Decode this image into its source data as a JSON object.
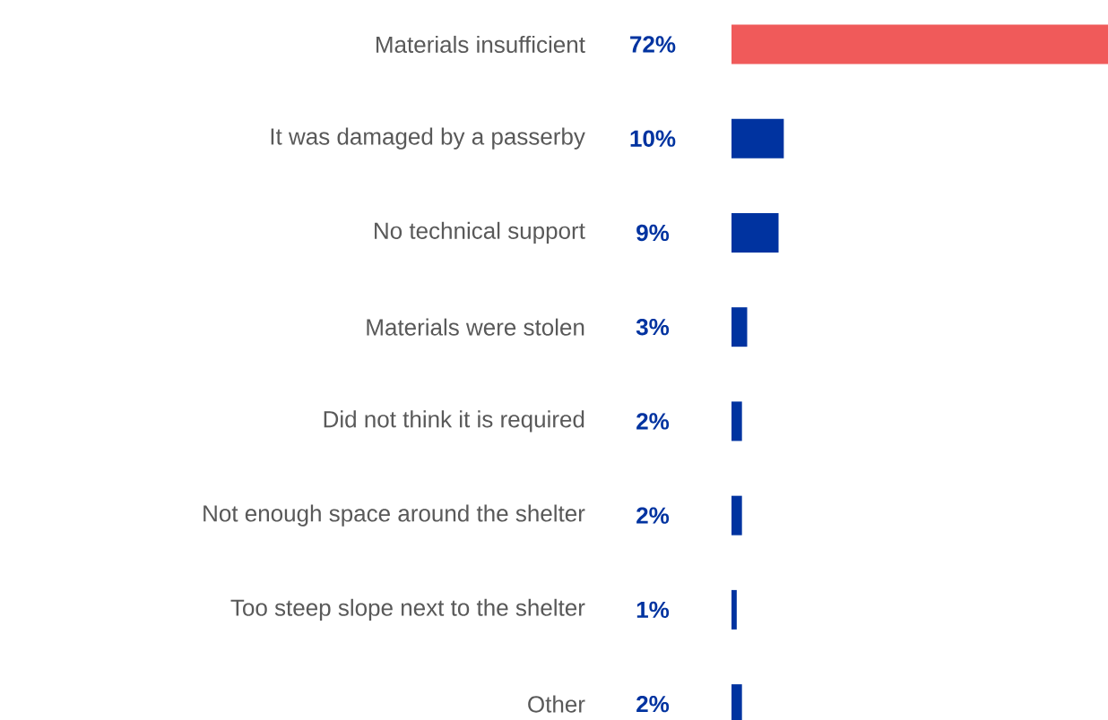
{
  "chart_data": {
    "type": "bar",
    "orientation": "horizontal",
    "categories": [
      "Materials insufficient",
      "It was damaged by a passerby",
      "No technical support",
      "Materials were stolen",
      "Did not think it is required",
      "Not enough space around the shelter",
      "Too steep slope next to the shelter",
      "Other"
    ],
    "values": [
      72,
      10,
      9,
      3,
      2,
      2,
      1,
      2
    ],
    "value_labels": [
      "72%",
      "10%",
      "9%",
      "3%",
      "2%",
      "2%",
      "1%",
      "2%"
    ],
    "colors": [
      "#f05a5a",
      "#0033a0",
      "#0033a0",
      "#0033a0",
      "#0033a0",
      "#0033a0",
      "#0033a0",
      "#0033a0"
    ]
  }
}
